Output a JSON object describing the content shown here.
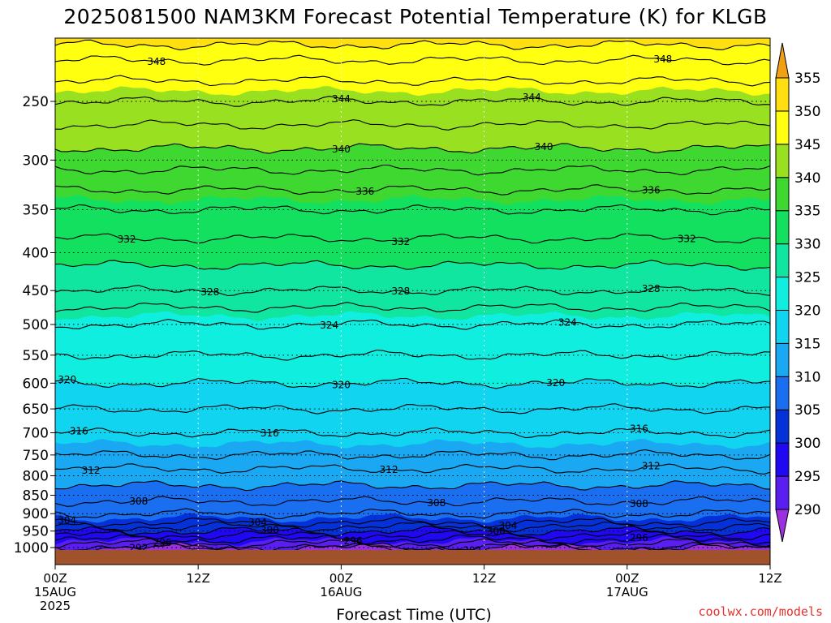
{
  "chart_data": {
    "type": "heatmap",
    "title": "2025081500 NAM3KM Forecast Potential Temperature (K) for KLGB",
    "xlabel": "Forecast Time (UTC)",
    "ylabel": "",
    "credit": "coolwx.com/models",
    "x_ticks": [
      {
        "hour": 0,
        "line1": "00Z",
        "line2": "15AUG",
        "line3": "2025"
      },
      {
        "hour": 12,
        "line1": "12Z",
        "line2": "",
        "line3": ""
      },
      {
        "hour": 24,
        "line1": "00Z",
        "line2": "16AUG",
        "line3": ""
      },
      {
        "hour": 36,
        "line1": "12Z",
        "line2": "",
        "line3": ""
      },
      {
        "hour": 48,
        "line1": "00Z",
        "line2": "17AUG",
        "line3": ""
      },
      {
        "hour": 60,
        "line1": "12Z",
        "line2": "",
        "line3": ""
      }
    ],
    "xlim": [
      0,
      60
    ],
    "y_ticks": [
      250,
      300,
      350,
      400,
      450,
      500,
      550,
      600,
      650,
      700,
      750,
      800,
      850,
      900,
      950,
      1000
    ],
    "ylim_hPa": [
      1012,
      200
    ],
    "y_scale": "log-pressure",
    "grid": "dotted",
    "colorbar": {
      "ticks": [
        355,
        350,
        345,
        340,
        335,
        330,
        325,
        320,
        315,
        310,
        305,
        300,
        295,
        290
      ],
      "levels": [
        {
          "from": 285,
          "to": 290,
          "color": "#9b30e0"
        },
        {
          "from": 290,
          "to": 295,
          "color": "#5a1ff0"
        },
        {
          "from": 295,
          "to": 300,
          "color": "#2008f2"
        },
        {
          "from": 300,
          "to": 305,
          "color": "#0532d8"
        },
        {
          "from": 305,
          "to": 310,
          "color": "#1a6ef0"
        },
        {
          "from": 310,
          "to": 315,
          "color": "#1aa8f2"
        },
        {
          "from": 315,
          "to": 320,
          "color": "#10d4f0"
        },
        {
          "from": 320,
          "to": 325,
          "color": "#10eee0"
        },
        {
          "from": 325,
          "to": 330,
          "color": "#10e6a0"
        },
        {
          "from": 330,
          "to": 335,
          "color": "#14e060"
        },
        {
          "from": 335,
          "to": 340,
          "color": "#3ed830"
        },
        {
          "from": 340,
          "to": 345,
          "color": "#98e020"
        },
        {
          "from": 345,
          "to": 350,
          "color": "#ffff10"
        },
        {
          "from": 350,
          "to": 355,
          "color": "#ffdf10"
        },
        {
          "from": 355,
          "to": 360,
          "color": "#f0a010"
        }
      ]
    },
    "ground_color": "#a0522d",
    "theta_profile": [
      {
        "p": 1000,
        "theta": 292
      },
      {
        "p": 975,
        "theta": 296
      },
      {
        "p": 950,
        "theta": 300
      },
      {
        "p": 925,
        "theta": 304
      },
      {
        "p": 900,
        "theta": 306
      },
      {
        "p": 850,
        "theta": 309
      },
      {
        "p": 800,
        "theta": 311
      },
      {
        "p": 750,
        "theta": 314
      },
      {
        "p": 700,
        "theta": 316
      },
      {
        "p": 650,
        "theta": 318
      },
      {
        "p": 600,
        "theta": 320
      },
      {
        "p": 550,
        "theta": 322
      },
      {
        "p": 500,
        "theta": 324
      },
      {
        "p": 450,
        "theta": 328
      },
      {
        "p": 400,
        "theta": 331
      },
      {
        "p": 350,
        "theta": 334
      },
      {
        "p": 300,
        "theta": 339
      },
      {
        "p": 250,
        "theta": 344
      },
      {
        "p": 220,
        "theta": 348
      },
      {
        "p": 200,
        "theta": 352
      }
    ],
    "contours": [
      {
        "theta": 348,
        "label": "348",
        "label_hours": [
          8.5,
          51
        ]
      },
      {
        "theta": 344,
        "label": "344",
        "label_hours": [
          24,
          40
        ]
      },
      {
        "theta": 340,
        "label": "340",
        "label_hours": [
          24,
          41
        ]
      },
      {
        "theta": 336,
        "label": "336",
        "label_hours": [
          26,
          50
        ]
      },
      {
        "theta": 332,
        "label": "332",
        "label_hours": [
          6,
          29,
          53
        ]
      },
      {
        "theta": 328,
        "label": "328",
        "label_hours": [
          13,
          29,
          50
        ]
      },
      {
        "theta": 324,
        "label": "324",
        "label_hours": [
          23,
          43
        ]
      },
      {
        "theta": 320,
        "label": "320",
        "label_hours": [
          1,
          24,
          42
        ]
      },
      {
        "theta": 316,
        "label": "316",
        "label_hours": [
          2,
          18,
          49
        ]
      },
      {
        "theta": 312,
        "label": "312",
        "label_hours": [
          3,
          28,
          50
        ]
      },
      {
        "theta": 308,
        "label": "308",
        "label_hours": [
          7,
          32,
          49
        ]
      },
      {
        "theta": 304,
        "label": "304",
        "label_hours": [
          1,
          17,
          38
        ]
      },
      {
        "theta": 300,
        "label": "300",
        "label_hours": [
          18,
          37
        ]
      },
      {
        "theta": 296,
        "label": "296",
        "label_hours": [
          9,
          25,
          49
        ]
      },
      {
        "theta": 292,
        "label": "292",
        "label_hours": [
          7,
          35
        ]
      }
    ]
  }
}
